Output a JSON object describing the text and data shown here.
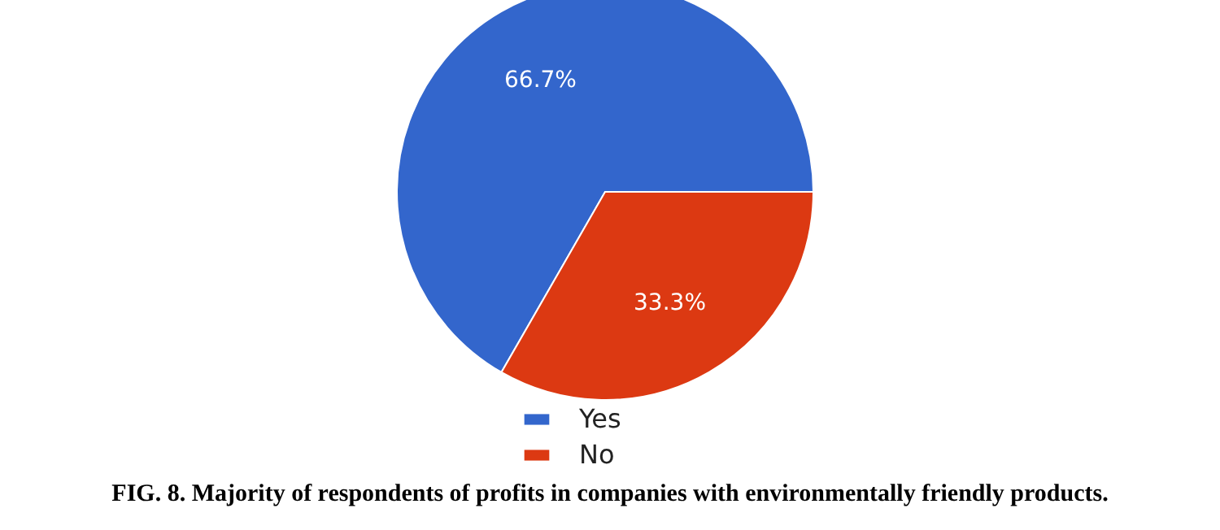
{
  "chart_data": {
    "type": "pie",
    "categories": [
      "Yes",
      "No"
    ],
    "values": [
      66.7,
      33.3
    ],
    "colors": [
      "#3366cc",
      "#dc3912"
    ],
    "value_labels": [
      "66.7%",
      "33.3%"
    ],
    "legend": "bottom",
    "annotations": [
      "FIG. 8. Majority of respondents of profits in companies with environmentally friendly products."
    ]
  }
}
